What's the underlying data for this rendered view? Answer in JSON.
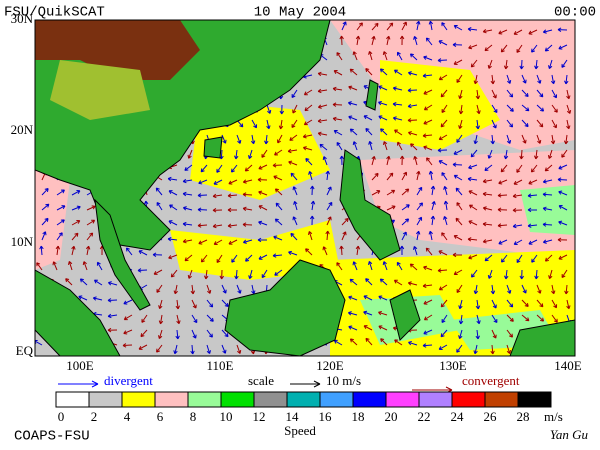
{
  "header": {
    "left": "FSU/QuikSCAT",
    "center": "10 May 2004",
    "right": "00:00"
  },
  "lat_labels": [
    "30N",
    "20N",
    "10N",
    "EQ"
  ],
  "lon_labels": [
    "100E",
    "110E",
    "120E",
    "130E",
    "140E"
  ],
  "legend": {
    "divergent": "divergent",
    "scale": "scale",
    "scale_value": "10 m/s",
    "convergent": "convergent"
  },
  "colorbar": {
    "ticks": [
      0,
      2,
      4,
      6,
      8,
      10,
      12,
      14,
      16,
      18,
      20,
      22,
      24,
      26,
      28
    ],
    "unit": "m/s",
    "title": "Speed",
    "colors": [
      "#ffffff",
      "#c8c8c8",
      "#ffff00",
      "#ffc0c0",
      "#98fb98",
      "#00e000",
      "#909090",
      "#00b0b0",
      "#40a0ff",
      "#0000ff",
      "#ff40ff",
      "#b080ff",
      "#ff0000",
      "#c04000",
      "#000000"
    ]
  },
  "footer": {
    "left": "COAPS-FSU",
    "right": "Yan Gu"
  }
}
